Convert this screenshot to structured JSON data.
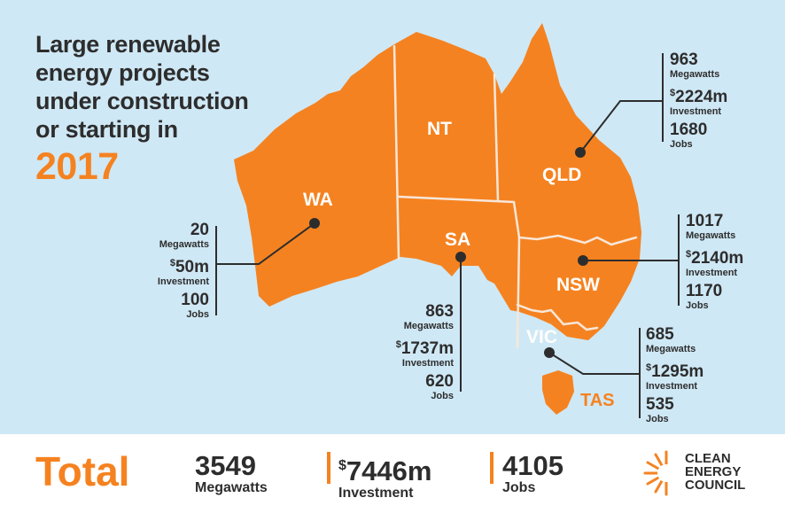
{
  "headline": {
    "lines": [
      "Large renewable",
      "energy projects",
      "under construction",
      "or starting in"
    ],
    "year": "2017"
  },
  "states": {
    "WA": "WA",
    "NT": "NT",
    "SA": "SA",
    "QLD": "QLD",
    "NSW": "NSW",
    "VIC": "VIC",
    "TAS": "TAS"
  },
  "stats": {
    "wa": {
      "mw": "20",
      "mw_label": "Megawatts",
      "currency": "$",
      "investment": "50m",
      "investment_label": "Investment",
      "jobs": "100",
      "jobs_label": "Jobs"
    },
    "sa": {
      "mw": "863",
      "mw_label": "Megawatts",
      "currency": "$",
      "investment": "1737m",
      "investment_label": "Investment",
      "jobs": "620",
      "jobs_label": "Jobs"
    },
    "qld": {
      "mw": "963",
      "mw_label": "Megawatts",
      "currency": "$",
      "investment": "2224m",
      "investment_label": "Investment",
      "jobs": "1680",
      "jobs_label": "Jobs"
    },
    "nsw": {
      "mw": "1017",
      "mw_label": "Megawatts",
      "currency": "$",
      "investment": "2140m",
      "investment_label": "Investment",
      "jobs": "1170",
      "jobs_label": "Jobs"
    },
    "vic": {
      "mw": "685",
      "mw_label": "Megawatts",
      "currency": "$",
      "investment": "1295m",
      "investment_label": "Investment",
      "jobs": "535",
      "jobs_label": "Jobs"
    }
  },
  "totals": {
    "label": "Total",
    "mw": "3549",
    "mw_label": "Megawatts",
    "currency": "$",
    "investment": "7446m",
    "investment_label": "Investment",
    "jobs": "4105",
    "jobs_label": "Jobs"
  },
  "logo": {
    "lines": [
      "CLEAN",
      "ENERGY",
      "COUNCIL"
    ]
  },
  "colors": {
    "accent": "#f58220",
    "water": "#cfe8f5",
    "text": "#2d2d2d"
  }
}
